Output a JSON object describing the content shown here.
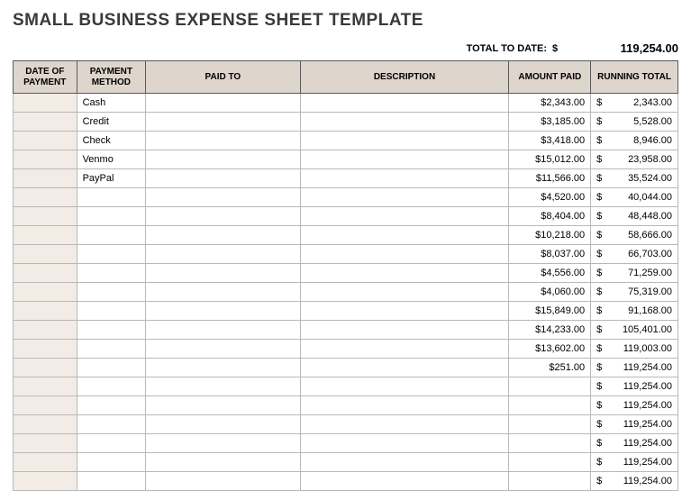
{
  "title": "SMALL BUSINESS EXPENSE SHEET TEMPLATE",
  "totalLabel": "TOTAL TO DATE:",
  "totalCurrency": "$",
  "totalValue": "119,254.00",
  "headers": {
    "date": "DATE OF PAYMENT",
    "method": "PAYMENT METHOD",
    "paidTo": "PAID TO",
    "description": "DESCRIPTION",
    "amount": "AMOUNT PAID",
    "running": "RUNNING TOTAL"
  },
  "rows": [
    {
      "date": "",
      "method": "Cash",
      "paidTo": "",
      "desc": "",
      "amount": "$2,343.00",
      "running": "2,343.00"
    },
    {
      "date": "",
      "method": "Credit",
      "paidTo": "",
      "desc": "",
      "amount": "$3,185.00",
      "running": "5,528.00"
    },
    {
      "date": "",
      "method": "Check",
      "paidTo": "",
      "desc": "",
      "amount": "$3,418.00",
      "running": "8,946.00"
    },
    {
      "date": "",
      "method": "Venmo",
      "paidTo": "",
      "desc": "",
      "amount": "$15,012.00",
      "running": "23,958.00"
    },
    {
      "date": "",
      "method": "PayPal",
      "paidTo": "",
      "desc": "",
      "amount": "$11,566.00",
      "running": "35,524.00"
    },
    {
      "date": "",
      "method": "",
      "paidTo": "",
      "desc": "",
      "amount": "$4,520.00",
      "running": "40,044.00"
    },
    {
      "date": "",
      "method": "",
      "paidTo": "",
      "desc": "",
      "amount": "$8,404.00",
      "running": "48,448.00"
    },
    {
      "date": "",
      "method": "",
      "paidTo": "",
      "desc": "",
      "amount": "$10,218.00",
      "running": "58,666.00"
    },
    {
      "date": "",
      "method": "",
      "paidTo": "",
      "desc": "",
      "amount": "$8,037.00",
      "running": "66,703.00"
    },
    {
      "date": "",
      "method": "",
      "paidTo": "",
      "desc": "",
      "amount": "$4,556.00",
      "running": "71,259.00"
    },
    {
      "date": "",
      "method": "",
      "paidTo": "",
      "desc": "",
      "amount": "$4,060.00",
      "running": "75,319.00"
    },
    {
      "date": "",
      "method": "",
      "paidTo": "",
      "desc": "",
      "amount": "$15,849.00",
      "running": "91,168.00"
    },
    {
      "date": "",
      "method": "",
      "paidTo": "",
      "desc": "",
      "amount": "$14,233.00",
      "running": "105,401.00"
    },
    {
      "date": "",
      "method": "",
      "paidTo": "",
      "desc": "",
      "amount": "$13,602.00",
      "running": "119,003.00"
    },
    {
      "date": "",
      "method": "",
      "paidTo": "",
      "desc": "",
      "amount": "$251.00",
      "running": "119,254.00"
    },
    {
      "date": "",
      "method": "",
      "paidTo": "",
      "desc": "",
      "amount": "",
      "running": "119,254.00"
    },
    {
      "date": "",
      "method": "",
      "paidTo": "",
      "desc": "",
      "amount": "",
      "running": "119,254.00"
    },
    {
      "date": "",
      "method": "",
      "paidTo": "",
      "desc": "",
      "amount": "",
      "running": "119,254.00"
    },
    {
      "date": "",
      "method": "",
      "paidTo": "",
      "desc": "",
      "amount": "",
      "running": "119,254.00"
    },
    {
      "date": "",
      "method": "",
      "paidTo": "",
      "desc": "",
      "amount": "",
      "running": "119,254.00"
    },
    {
      "date": "",
      "method": "",
      "paidTo": "",
      "desc": "",
      "amount": "",
      "running": "119,254.00"
    }
  ],
  "colors": {
    "headerBg": "#ded5cc",
    "dateColBg": "#f3ece6",
    "borderDark": "#5a5a5a",
    "borderLight": "#b8b8b8",
    "text": "#000000",
    "titleText": "#3a3a3a"
  },
  "columnWidths": {
    "date": 70,
    "method": 76,
    "paidTo": 170,
    "desc": 230,
    "amount": 90,
    "running": 96
  }
}
